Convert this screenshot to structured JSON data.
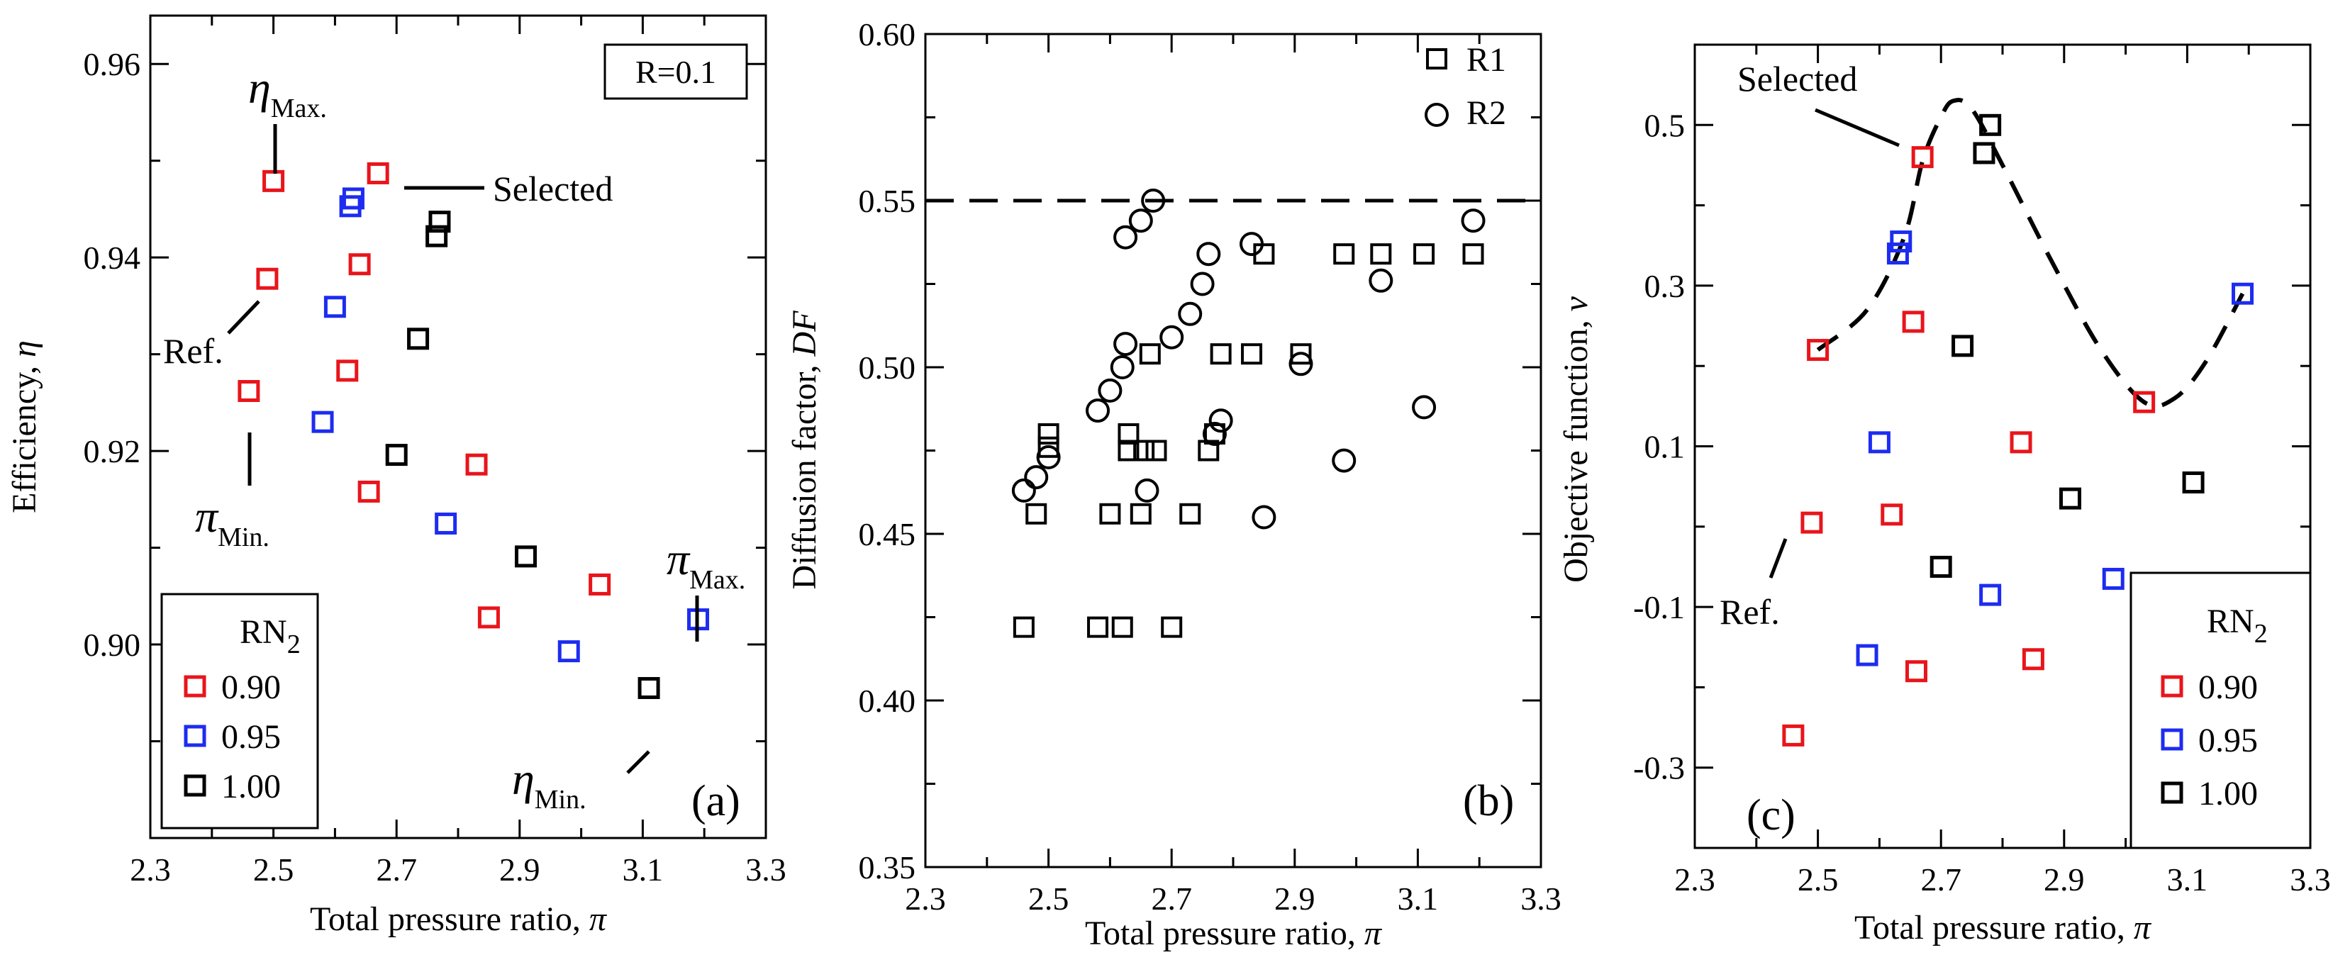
{
  "colors": {
    "red": "#e8151b",
    "blue": "#1d2cf0",
    "black": "#000000"
  },
  "chart_data": [
    {
      "type": "scatter",
      "panel_label": "(a)",
      "xlabel": "Total pressure ratio, ",
      "xsymbol": "π",
      "ylabel": "Efficiency, ",
      "ysymbol": "η",
      "xlim": [
        2.3,
        3.3
      ],
      "ylim": [
        0.88,
        0.965
      ],
      "xticks": [
        "2.3",
        "2.5",
        "2.7",
        "2.9",
        "3.1",
        "3.3"
      ],
      "yticks": [
        "0.90",
        "0.92",
        "0.94",
        "0.96"
      ],
      "box_label": "R=0.1",
      "legend_title_main": "RN",
      "legend_title_sub": "2",
      "series": [
        {
          "name": "0.90",
          "color": "#e8151b",
          "points": [
            [
              2.46,
              0.9262
            ],
            [
              2.49,
              0.9378
            ],
            [
              2.5,
              0.9479
            ],
            [
              2.62,
              0.9283
            ],
            [
              2.64,
              0.9393
            ],
            [
              2.655,
              0.9158
            ],
            [
              2.67,
              0.9487
            ],
            [
              2.83,
              0.9186
            ],
            [
              2.85,
              0.9028
            ],
            [
              3.03,
              0.9062
            ]
          ]
        },
        {
          "name": "0.95",
          "color": "#1d2cf0",
          "points": [
            [
              2.58,
              0.923
            ],
            [
              2.6,
              0.9349
            ],
            [
              2.625,
              0.9453
            ],
            [
              2.63,
              0.9461
            ],
            [
              2.78,
              0.9125
            ],
            [
              2.98,
              0.8993
            ],
            [
              3.19,
              0.9026
            ]
          ]
        },
        {
          "name": "1.00",
          "color": "#000000",
          "points": [
            [
              2.7,
              0.9196
            ],
            [
              2.735,
              0.9316
            ],
            [
              2.765,
              0.9422
            ],
            [
              2.77,
              0.9437
            ],
            [
              2.91,
              0.9091
            ],
            [
              3.11,
              0.8955
            ]
          ]
        }
      ],
      "annotations": {
        "eta_max_main": "η",
        "eta_max_sub": "Max.",
        "selected": "Selected",
        "ref": "Ref.",
        "pi_min_main": "π",
        "pi_min_sub": "Min.",
        "pi_max_main": "π",
        "pi_max_sub": "Max.",
        "eta_min_main": "η",
        "eta_min_sub": "Min."
      }
    },
    {
      "type": "scatter",
      "panel_label": "(b)",
      "xlabel": "Total pressure ratio, ",
      "xsymbol": "π",
      "ylabel": "Diffusion factor, ",
      "ysymbol": "DF",
      "xlim": [
        2.3,
        3.3
      ],
      "ylim": [
        0.35,
        0.6
      ],
      "xticks": [
        "2.3",
        "2.5",
        "2.7",
        "2.9",
        "3.1",
        "3.3"
      ],
      "yticks": [
        "0.35",
        "0.40",
        "0.45",
        "0.50",
        "0.55",
        "0.60"
      ],
      "reference_line": 0.55,
      "series": [
        {
          "name": "R1",
          "marker": "square",
          "points": [
            [
              2.46,
              0.422
            ],
            [
              2.48,
              0.456
            ],
            [
              2.5,
              0.476
            ],
            [
              2.5,
              0.48
            ],
            [
              2.58,
              0.422
            ],
            [
              2.6,
              0.456
            ],
            [
              2.62,
              0.422
            ],
            [
              2.63,
              0.475
            ],
            [
              2.63,
              0.48
            ],
            [
              2.65,
              0.456
            ],
            [
              2.655,
              0.475
            ],
            [
              2.665,
              0.504
            ],
            [
              2.675,
              0.475
            ],
            [
              2.7,
              0.422
            ],
            [
              2.73,
              0.456
            ],
            [
              2.76,
              0.475
            ],
            [
              2.77,
              0.48
            ],
            [
              2.78,
              0.504
            ],
            [
              2.83,
              0.504
            ],
            [
              2.85,
              0.534
            ],
            [
              2.91,
              0.504
            ],
            [
              2.98,
              0.534
            ],
            [
              3.04,
              0.534
            ],
            [
              3.11,
              0.534
            ],
            [
              3.19,
              0.534
            ]
          ]
        },
        {
          "name": "R2",
          "marker": "circle",
          "points": [
            [
              2.46,
              0.463
            ],
            [
              2.48,
              0.467
            ],
            [
              2.5,
              0.473
            ],
            [
              2.58,
              0.487
            ],
            [
              2.6,
              0.493
            ],
            [
              2.62,
              0.5
            ],
            [
              2.625,
              0.539
            ],
            [
              2.625,
              0.507
            ],
            [
              2.65,
              0.544
            ],
            [
              2.66,
              0.463
            ],
            [
              2.67,
              0.55
            ],
            [
              2.7,
              0.509
            ],
            [
              2.73,
              0.516
            ],
            [
              2.75,
              0.525
            ],
            [
              2.76,
              0.534
            ],
            [
              2.77,
              0.48
            ],
            [
              2.78,
              0.484
            ],
            [
              2.83,
              0.537
            ],
            [
              2.85,
              0.455
            ],
            [
              2.91,
              0.501
            ],
            [
              2.98,
              0.472
            ],
            [
              3.04,
              0.526
            ],
            [
              3.11,
              0.488
            ],
            [
              3.19,
              0.544
            ]
          ]
        }
      ]
    },
    {
      "type": "scatter",
      "panel_label": "(c)",
      "xlabel": "Total pressure ratio, ",
      "xsymbol": "π",
      "ylabel": "Objective function, ",
      "ysymbol": "ν",
      "xlim": [
        2.3,
        3.3
      ],
      "ylim": [
        -0.4,
        0.6
      ],
      "xticks": [
        "2.3",
        "2.5",
        "2.7",
        "2.9",
        "3.1",
        "3.3"
      ],
      "yticks": [
        "-0.3",
        "-0.1",
        "0.1",
        "0.3",
        "0.5"
      ],
      "legend_title_main": "RN",
      "legend_title_sub": "2",
      "envelope": [
        [
          2.5,
          0.22
        ],
        [
          2.58,
          0.27
        ],
        [
          2.64,
          0.36
        ],
        [
          2.67,
          0.455
        ],
        [
          2.7,
          0.51
        ],
        [
          2.72,
          0.53
        ],
        [
          2.75,
          0.52
        ],
        [
          2.8,
          0.45
        ],
        [
          2.88,
          0.33
        ],
        [
          2.96,
          0.22
        ],
        [
          3.03,
          0.155
        ],
        [
          3.08,
          0.16
        ],
        [
          3.13,
          0.205
        ],
        [
          3.19,
          0.29
        ]
      ],
      "series": [
        {
          "name": "0.90",
          "color": "#e8151b",
          "points": [
            [
              2.46,
              -0.26
            ],
            [
              2.49,
              0.005
            ],
            [
              2.5,
              0.22
            ],
            [
              2.62,
              0.015
            ],
            [
              2.655,
              0.255
            ],
            [
              2.66,
              -0.18
            ],
            [
              2.67,
              0.46
            ],
            [
              2.83,
              0.105
            ],
            [
              2.85,
              -0.165
            ],
            [
              3.03,
              0.155
            ]
          ]
        },
        {
          "name": "0.95",
          "color": "#1d2cf0",
          "points": [
            [
              2.58,
              -0.16
            ],
            [
              2.6,
              0.105
            ],
            [
              2.63,
              0.34
            ],
            [
              2.635,
              0.355
            ],
            [
              2.78,
              -0.085
            ],
            [
              2.98,
              -0.065
            ],
            [
              3.19,
              0.29
            ]
          ]
        },
        {
          "name": "1.00",
          "color": "#000000",
          "points": [
            [
              2.7,
              -0.05
            ],
            [
              2.735,
              0.225
            ],
            [
              2.77,
              0.465
            ],
            [
              2.78,
              0.5
            ],
            [
              2.91,
              0.035
            ],
            [
              3.11,
              0.055
            ]
          ]
        }
      ],
      "annotations": {
        "selected": "Selected",
        "ref": "Ref."
      }
    }
  ]
}
